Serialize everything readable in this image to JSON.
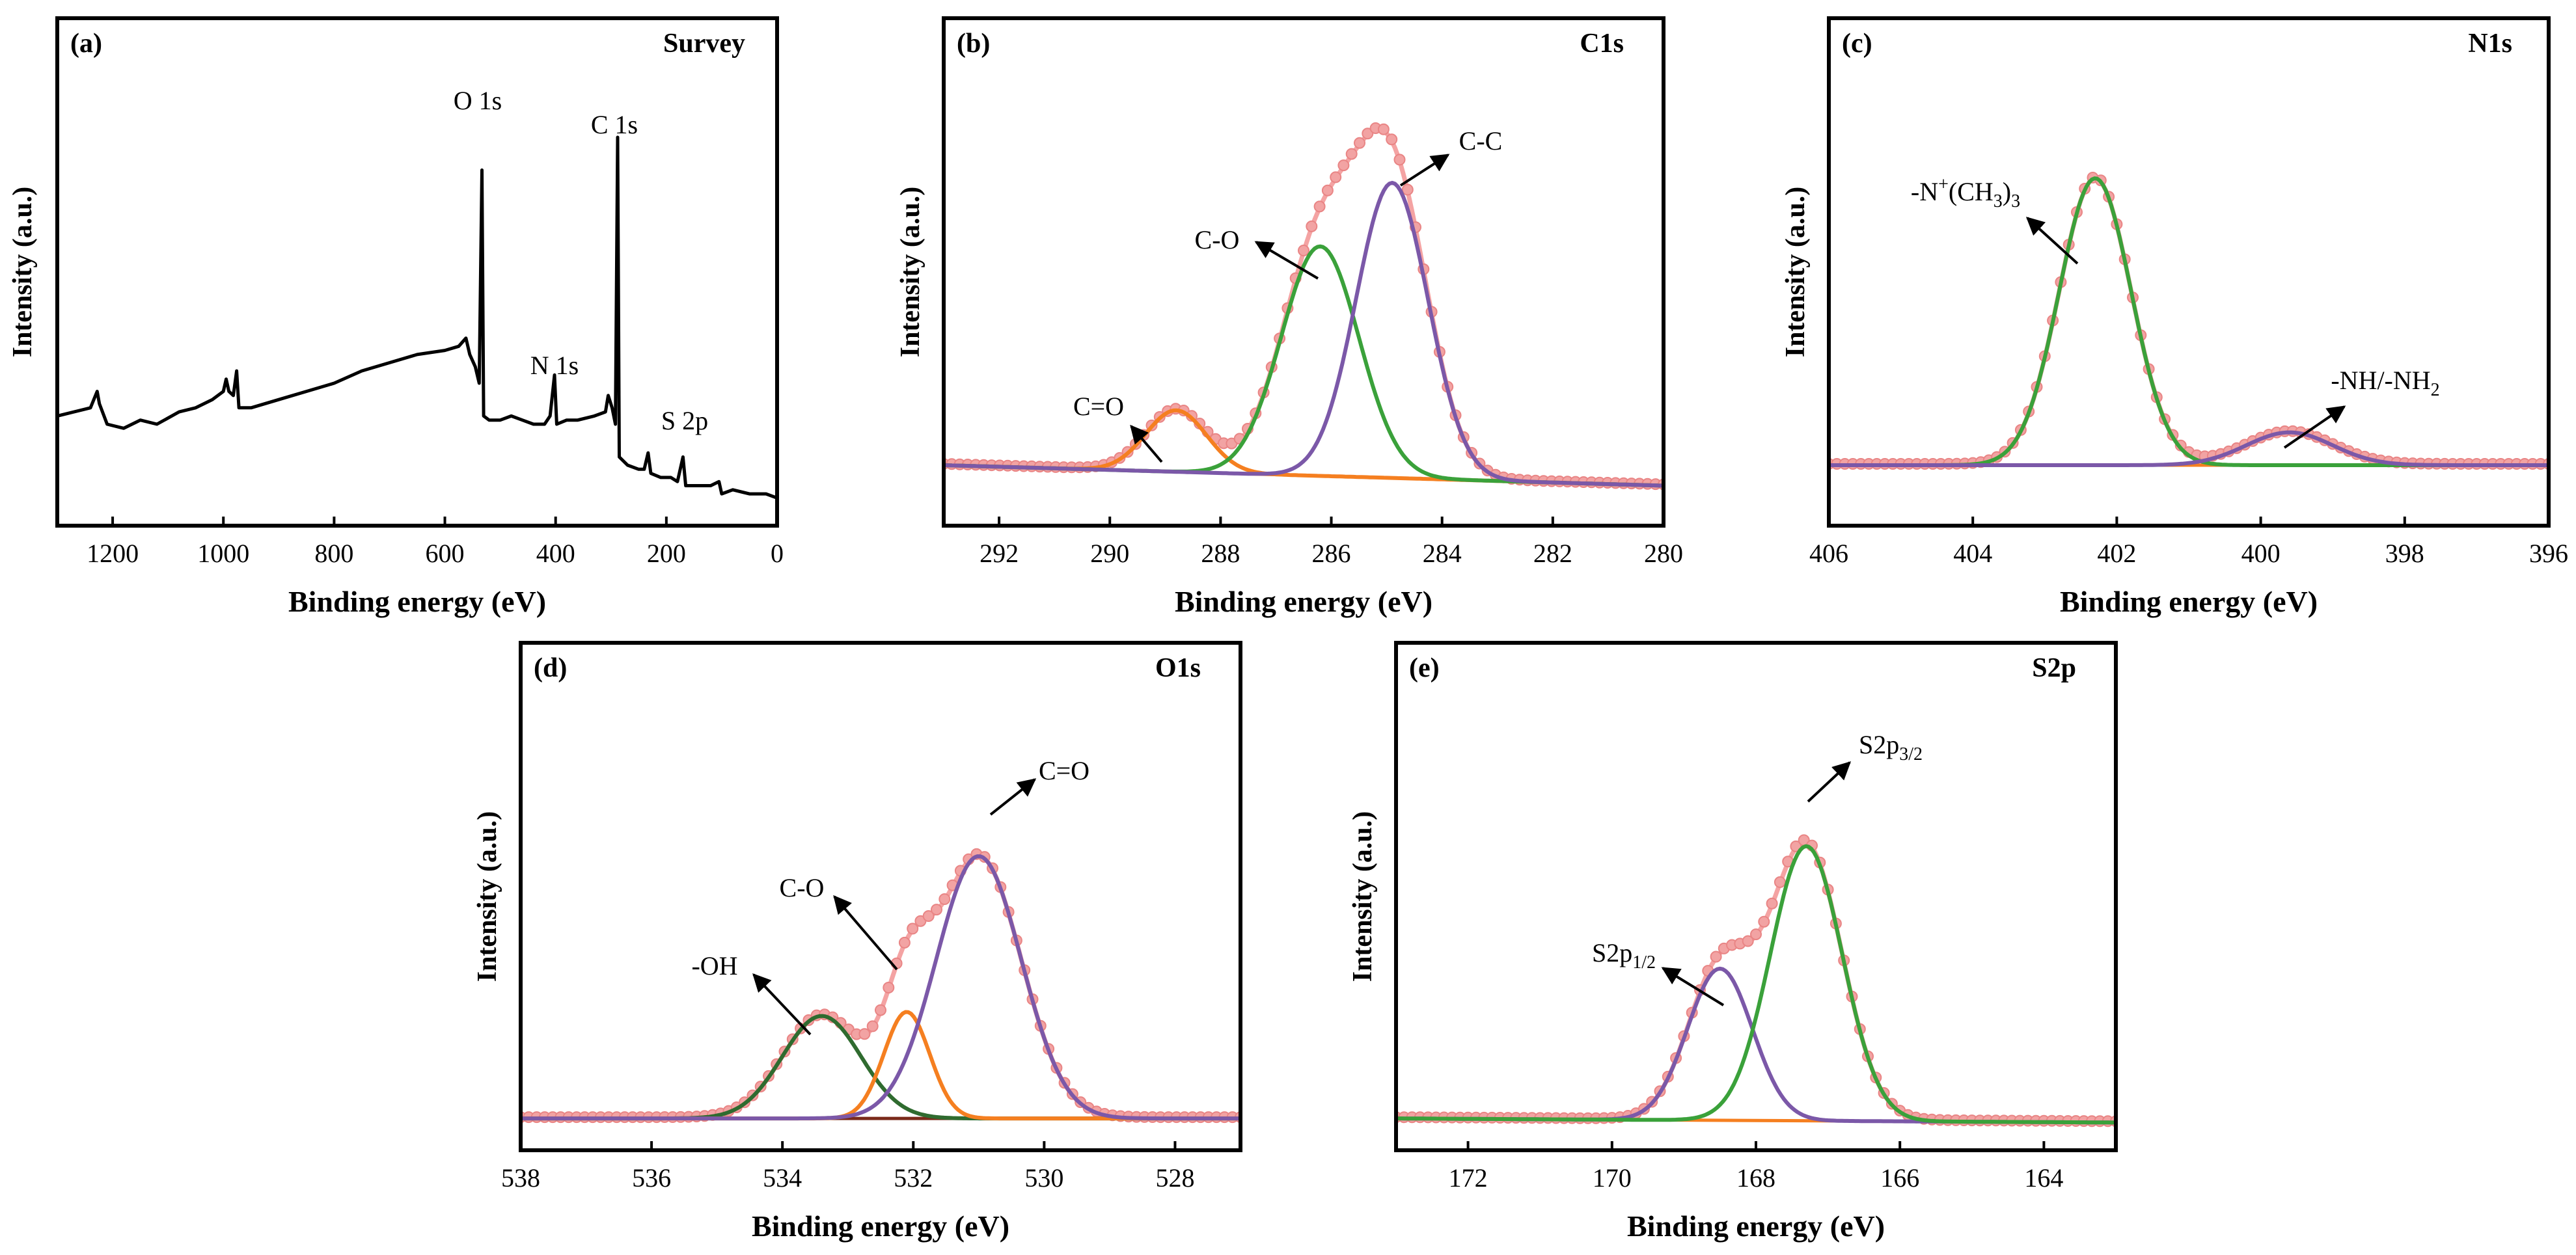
{
  "chart_data": [
    {
      "id": "a",
      "type": "line",
      "tag": "(a)",
      "title": "Survey",
      "xlabel": "Binding energy (eV)",
      "ylabel": "Intensity (a.u.)",
      "xlim": [
        1300,
        0
      ],
      "ylim": [
        0,
        100
      ],
      "xticks": [
        1200,
        1000,
        800,
        600,
        400,
        200,
        0
      ],
      "series": [
        {
          "name": "Survey",
          "color": "#000000",
          "points": [
            [
              1300,
              22
            ],
            [
              1240,
              24
            ],
            [
              1228,
              28
            ],
            [
              1224,
              25
            ],
            [
              1210,
              20
            ],
            [
              1180,
              19
            ],
            [
              1150,
              21
            ],
            [
              1120,
              20
            ],
            [
              1080,
              23
            ],
            [
              1050,
              24
            ],
            [
              1020,
              26
            ],
            [
              1000,
              28
            ],
            [
              995,
              31
            ],
            [
              990,
              28
            ],
            [
              982,
              27
            ],
            [
              976,
              33
            ],
            [
              972,
              24
            ],
            [
              950,
              24
            ],
            [
              900,
              26
            ],
            [
              850,
              28
            ],
            [
              800,
              30
            ],
            [
              750,
              33
            ],
            [
              700,
              35
            ],
            [
              650,
              37
            ],
            [
              600,
              38
            ],
            [
              575,
              39
            ],
            [
              562,
              41
            ],
            [
              555,
              37
            ],
            [
              545,
              34
            ],
            [
              538,
              30
            ],
            [
              533,
              82
            ],
            [
              530,
              22
            ],
            [
              520,
              21
            ],
            [
              500,
              21
            ],
            [
              480,
              22
            ],
            [
              460,
              21
            ],
            [
              440,
              20
            ],
            [
              420,
              20
            ],
            [
              410,
              22
            ],
            [
              402,
              32
            ],
            [
              398,
              20
            ],
            [
              380,
              21
            ],
            [
              360,
              21
            ],
            [
              330,
              22
            ],
            [
              310,
              23
            ],
            [
              305,
              27
            ],
            [
              298,
              24
            ],
            [
              292,
              20
            ],
            [
              288,
              90
            ],
            [
              285,
              12
            ],
            [
              270,
              10
            ],
            [
              250,
              9
            ],
            [
              240,
              9
            ],
            [
              233,
              13
            ],
            [
              228,
              8
            ],
            [
              210,
              7
            ],
            [
              192,
              7
            ],
            [
              180,
              6
            ],
            [
              170,
              12
            ],
            [
              165,
              5
            ],
            [
              150,
              5
            ],
            [
              120,
              5
            ],
            [
              105,
              6
            ],
            [
              100,
              3
            ],
            [
              80,
              4
            ],
            [
              50,
              3
            ],
            [
              20,
              3
            ],
            [
              0,
              2
            ]
          ]
        }
      ],
      "annotations": [
        {
          "text": "O 1s",
          "x": 580,
          "y": 85
        },
        {
          "text": "C 1s",
          "x": 330,
          "y": 80
        },
        {
          "text": "N 1s",
          "x": 475,
          "y": 32
        },
        {
          "text": "S 2p",
          "x": 140,
          "y": 16
        }
      ]
    },
    {
      "id": "b",
      "type": "line",
      "tag": "(b)",
      "title": "C1s",
      "xlabel": "Binding energy (eV)",
      "ylabel": "Intensity (a.u.)",
      "xlim": [
        293,
        280
      ],
      "ylim": [
        0,
        100
      ],
      "xticks": [
        292,
        290,
        288,
        286,
        284,
        282,
        280
      ],
      "baseline": {
        "left": 10,
        "right": 5
      },
      "components": [
        {
          "name": "C=O",
          "color": "#f57f20",
          "center": 288.8,
          "height": 15,
          "sigma": 0.55
        },
        {
          "name": "C-O",
          "color": "#3aa13a",
          "center": 286.2,
          "height": 56,
          "sigma": 0.7
        },
        {
          "name": "C-C",
          "color": "#7b58a8",
          "center": 284.9,
          "height": 72,
          "sigma": 0.65
        }
      ],
      "envelope_color": "#f4a3a3",
      "annotations": [
        {
          "text": "C=O",
          "x": 289.2,
          "y": 18
        },
        {
          "text": "C-O",
          "x": 287.7,
          "y": 56
        },
        {
          "text": "C-C",
          "x": 283.7,
          "y": 75
        }
      ]
    },
    {
      "id": "c",
      "type": "line",
      "tag": "(c)",
      "title": "N1s",
      "xlabel": "Binding energy (eV)",
      "ylabel": "Intensity (a.u.)",
      "xlim": [
        406,
        396
      ],
      "ylim": [
        0,
        100
      ],
      "xticks": [
        406,
        404,
        402,
        400,
        398,
        396
      ],
      "baseline": {
        "left": 10,
        "right": 10
      },
      "components": [
        {
          "name": "-N+(CH3)3",
          "color": "#3aa13a",
          "center": 402.3,
          "height": 70,
          "sigma": 0.5
        },
        {
          "name": "-NH/-NH2",
          "color": "#7b58a8",
          "center": 399.6,
          "height": 8,
          "sigma": 0.6
        }
      ],
      "envelope_color": "#f4a3a3",
      "annotations": [
        {
          "text": "-N+(CH3)3",
          "x": 404.5,
          "y": 67
        },
        {
          "text": "-NH/-NH2",
          "x": 398.9,
          "y": 22
        }
      ]
    },
    {
      "id": "d",
      "type": "line",
      "tag": "(d)",
      "title": "O1s",
      "xlabel": "Binding energy (eV)",
      "ylabel": "Intensity (a.u.)",
      "xlim": [
        538,
        527
      ],
      "ylim": [
        0,
        100
      ],
      "xticks": [
        538,
        536,
        534,
        532,
        530,
        528
      ],
      "baseline": {
        "left": 3,
        "right": 3
      },
      "components": [
        {
          "name": "-OH",
          "color": "#2f6b2f",
          "center": 533.4,
          "height": 25,
          "sigma": 0.6
        },
        {
          "name": "C-O",
          "color": "#f57f20",
          "center": 532.1,
          "height": 26,
          "sigma": 0.35
        },
        {
          "name": "C=O",
          "color": "#7b58a8",
          "center": 531.0,
          "height": 64,
          "sigma": 0.65
        }
      ],
      "envelope_color": "#f4a3a3",
      "annotations": [
        {
          "text": "-OH",
          "x": 534.6,
          "y": 22
        },
        {
          "text": "C-O",
          "x": 533.3,
          "y": 38
        },
        {
          "text": "C=O",
          "x": 530.0,
          "y": 61
        }
      ]
    },
    {
      "id": "e",
      "type": "line",
      "tag": "(e)",
      "title": "S2p",
      "xlabel": "Binding energy (eV)",
      "ylabel": "Intensity (a.u.)",
      "xlim": [
        173,
        163
      ],
      "ylim": [
        0,
        100
      ],
      "xticks": [
        172,
        170,
        168,
        166,
        164
      ],
      "baseline": {
        "left": 3,
        "right": 2
      },
      "components": [
        {
          "name": "S2p1/2",
          "color": "#7b58a8",
          "center": 168.5,
          "height": 37,
          "sigma": 0.45
        },
        {
          "name": "S2p3/2",
          "color": "#3aa13a",
          "center": 167.3,
          "height": 67,
          "sigma": 0.5
        }
      ],
      "envelope_color": "#f4a3a3",
      "annotations": [
        {
          "text": "S2p1/2",
          "x": 170.3,
          "y": 28
        },
        {
          "text": "S2p3/2",
          "x": 166.4,
          "y": 70
        }
      ]
    }
  ]
}
